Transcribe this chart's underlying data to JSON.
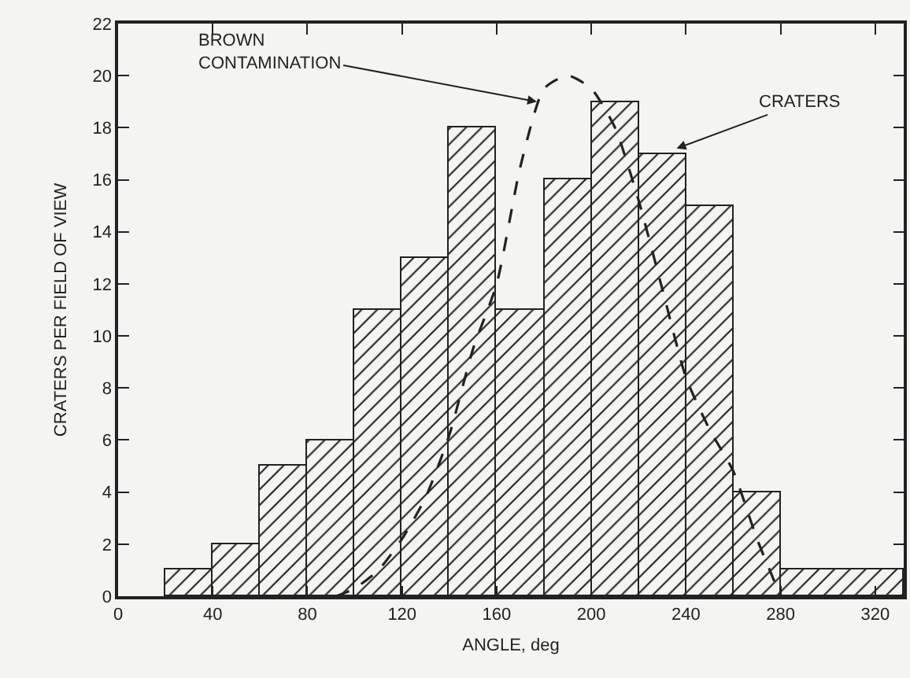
{
  "chart_data": {
    "type": "histogram",
    "xlabel": "ANGLE, deg",
    "ylabel": "CRATERS PER FIELD OF VIEW",
    "bins": [
      20,
      40,
      60,
      80,
      100,
      120,
      140,
      160,
      180,
      200,
      220,
      240,
      260,
      280,
      332
    ],
    "values": [
      1,
      2,
      5,
      6,
      11,
      13,
      18,
      11,
      16,
      19,
      17,
      15,
      4,
      1
    ],
    "color": "#222222",
    "series": [
      {
        "type": "line",
        "color": "#222222",
        "line_style": "dashed",
        "x": [
          92,
          100,
          110,
          120,
          130,
          140,
          150,
          160,
          170,
          180,
          190,
          200,
          210,
          220,
          230,
          240,
          250,
          260,
          270,
          280
        ],
        "values": [
          0,
          0.3,
          1,
          2.2,
          3.8,
          6.2,
          9.5,
          12,
          16.5,
          19.5,
          20,
          19.5,
          18,
          15.2,
          11.8,
          8.4,
          6.4,
          4.8,
          2.2,
          0
        ]
      }
    ],
    "annotations": [
      {
        "text": "BROWN\nCONTAMINATION",
        "x": 177,
        "y": 19
      },
      {
        "text": "CRATERS",
        "x": 236,
        "y": 17.2
      }
    ],
    "xlim": [
      0,
      332
    ],
    "xticks": [
      0,
      40,
      80,
      120,
      160,
      200,
      240,
      280,
      320
    ],
    "ylim": [
      0,
      22
    ],
    "yticks": [
      0,
      2,
      4,
      6,
      8,
      10,
      12,
      14,
      16,
      18,
      20,
      22
    ]
  }
}
